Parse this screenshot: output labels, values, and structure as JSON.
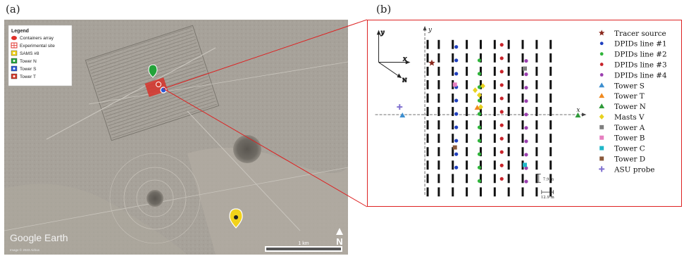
{
  "panels": {
    "a_label": "(a)",
    "b_label": "(b)"
  },
  "satellite": {
    "legend_title": "Legend",
    "legend_items": [
      {
        "label": "Containers array",
        "icon": "red-blob",
        "color": "#e0302a"
      },
      {
        "label": "Experimental site",
        "icon": "red-grid",
        "color": "#e0302a"
      },
      {
        "label": "SAMS #8",
        "icon": "yellow-marker",
        "color": "#f2d21a"
      },
      {
        "label": "Tower N",
        "icon": "green-marker",
        "color": "#23a33a"
      },
      {
        "label": "Tower S",
        "icon": "blue-marker",
        "color": "#2b59d6"
      },
      {
        "label": "Tower T",
        "icon": "red-marker",
        "color": "#d23a2a"
      }
    ],
    "watermark": "Google Earth",
    "copyright": "Image © 2023 Airbus",
    "scale_label": "1 km",
    "north_label": "N"
  },
  "schematic": {
    "axis_y_label": "y",
    "axis_x_label": "x",
    "compass_y": "y",
    "compass_x": "x",
    "compass_n": "N",
    "dim_vertical": "7.9 m",
    "dim_horizontal": "12.9 m",
    "legend": [
      {
        "label": "Tracer source",
        "shape": "star",
        "color": "#8b2a1f"
      },
      {
        "label": "DPIDs line #1",
        "shape": "dot",
        "color": "#1f3fbf"
      },
      {
        "label": "DPIDs line #2",
        "shape": "dot",
        "color": "#2fb43a"
      },
      {
        "label": "DPIDs line #3",
        "shape": "dot",
        "color": "#c8232a"
      },
      {
        "label": "DPIDs line #4",
        "shape": "dot",
        "color": "#9b3fb0"
      },
      {
        "label": "Tower S",
        "shape": "triangle",
        "color": "#3d8fd0"
      },
      {
        "label": "Tower T",
        "shape": "triangle",
        "color": "#f08a1f"
      },
      {
        "label": "Tower N",
        "shape": "triangle",
        "color": "#2f9a3a"
      },
      {
        "label": "Masts V",
        "shape": "diamond",
        "color": "#e8d21f"
      },
      {
        "label": "Tower A",
        "shape": "square",
        "color": "#7f7f7f"
      },
      {
        "label": "Tower B",
        "shape": "square",
        "color": "#e67fc0"
      },
      {
        "label": "Tower C",
        "shape": "square",
        "color": "#1fb7c8"
      },
      {
        "label": "Tower D",
        "shape": "square",
        "color": "#8b5a3c"
      },
      {
        "label": "ASU probe",
        "shape": "plus",
        "color": "#7f6fcf"
      }
    ]
  },
  "connector_color": "#d22"
}
